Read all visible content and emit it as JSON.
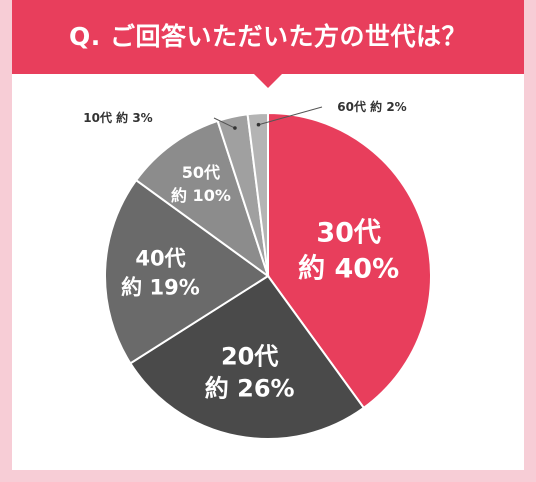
{
  "header": {
    "title": "Q. ご回答いただいた方の世代は？"
  },
  "chart_data": {
    "type": "pie",
    "categories": [
      "30代",
      "20代",
      "40代",
      "50代",
      "10代",
      "60代"
    ],
    "values": [
      40,
      26,
      19,
      10,
      3,
      2
    ],
    "labels": [
      {
        "name": "30代",
        "value": "約 40%"
      },
      {
        "name": "20代",
        "value": "約 26%"
      },
      {
        "name": "40代",
        "value": "約 19%"
      },
      {
        "name": "50代",
        "value": "約 10%"
      },
      {
        "name": "10代",
        "value": "約 3%"
      },
      {
        "name": "60代",
        "value": "約 2%"
      }
    ],
    "colors": [
      "#e83e5c",
      "#4a4a4a",
      "#6a6a6a",
      "#8c8c8c",
      "#a0a0a0",
      "#b4b4b4"
    ],
    "label_colors": [
      "#ffffff",
      "#ffffff",
      "#ffffff",
      "#ffffff",
      "#333333",
      "#333333"
    ],
    "start_angle_deg": 0,
    "direction": "clockwise"
  }
}
